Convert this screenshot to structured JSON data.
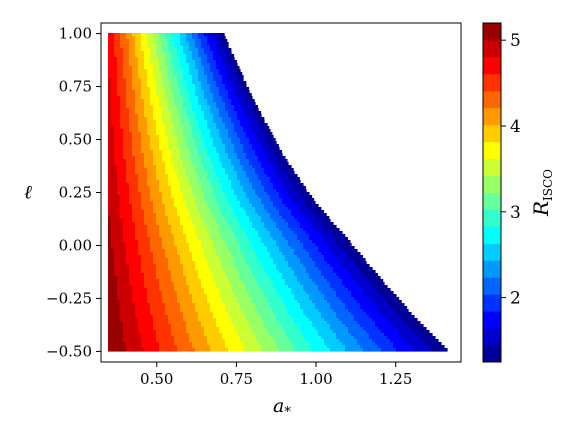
{
  "chart_data": {
    "type": "heatmap",
    "title": "",
    "xlabel": "a",
    "xlabel_sub": "*",
    "ylabel": "ℓ",
    "xlim": [
      0.325,
      1.455
    ],
    "ylim": [
      -0.55,
      1.05
    ],
    "x_ticks": [
      0.5,
      0.75,
      1.0,
      1.25
    ],
    "x_tick_labels": [
      "0.50",
      "0.75",
      "1.00",
      "1.25"
    ],
    "y_ticks": [
      1.0,
      0.75,
      0.5,
      0.25,
      0.0,
      -0.25,
      -0.5
    ],
    "y_tick_labels": [
      "1.00",
      "0.75",
      "0.50",
      "0.25",
      "0.00",
      "−0.25",
      "−0.50"
    ],
    "colorbar": {
      "label": "R",
      "label_sub": "ISCO",
      "range": [
        1.25,
        5.2
      ],
      "ticks": [
        2,
        3,
        4,
        5
      ],
      "tick_labels": [
        "2",
        "3",
        "4",
        "5"
      ],
      "levels": 20,
      "colormap": "jet"
    },
    "region": {
      "a_min": 0.35,
      "ell_min": -0.5,
      "ell_max": 1.0,
      "a_max_at_ell_max": 0.71,
      "a_max_at_ell_min": 1.42,
      "description_boundary_points": [
        [
          0.71,
          1.0
        ],
        [
          0.8,
          0.7
        ],
        [
          0.9,
          0.42
        ],
        [
          1.0,
          0.2
        ],
        [
          1.1,
          0.03
        ],
        [
          1.2,
          -0.15
        ],
        [
          1.3,
          -0.32
        ],
        [
          1.42,
          -0.5
        ]
      ]
    },
    "grid": false
  }
}
